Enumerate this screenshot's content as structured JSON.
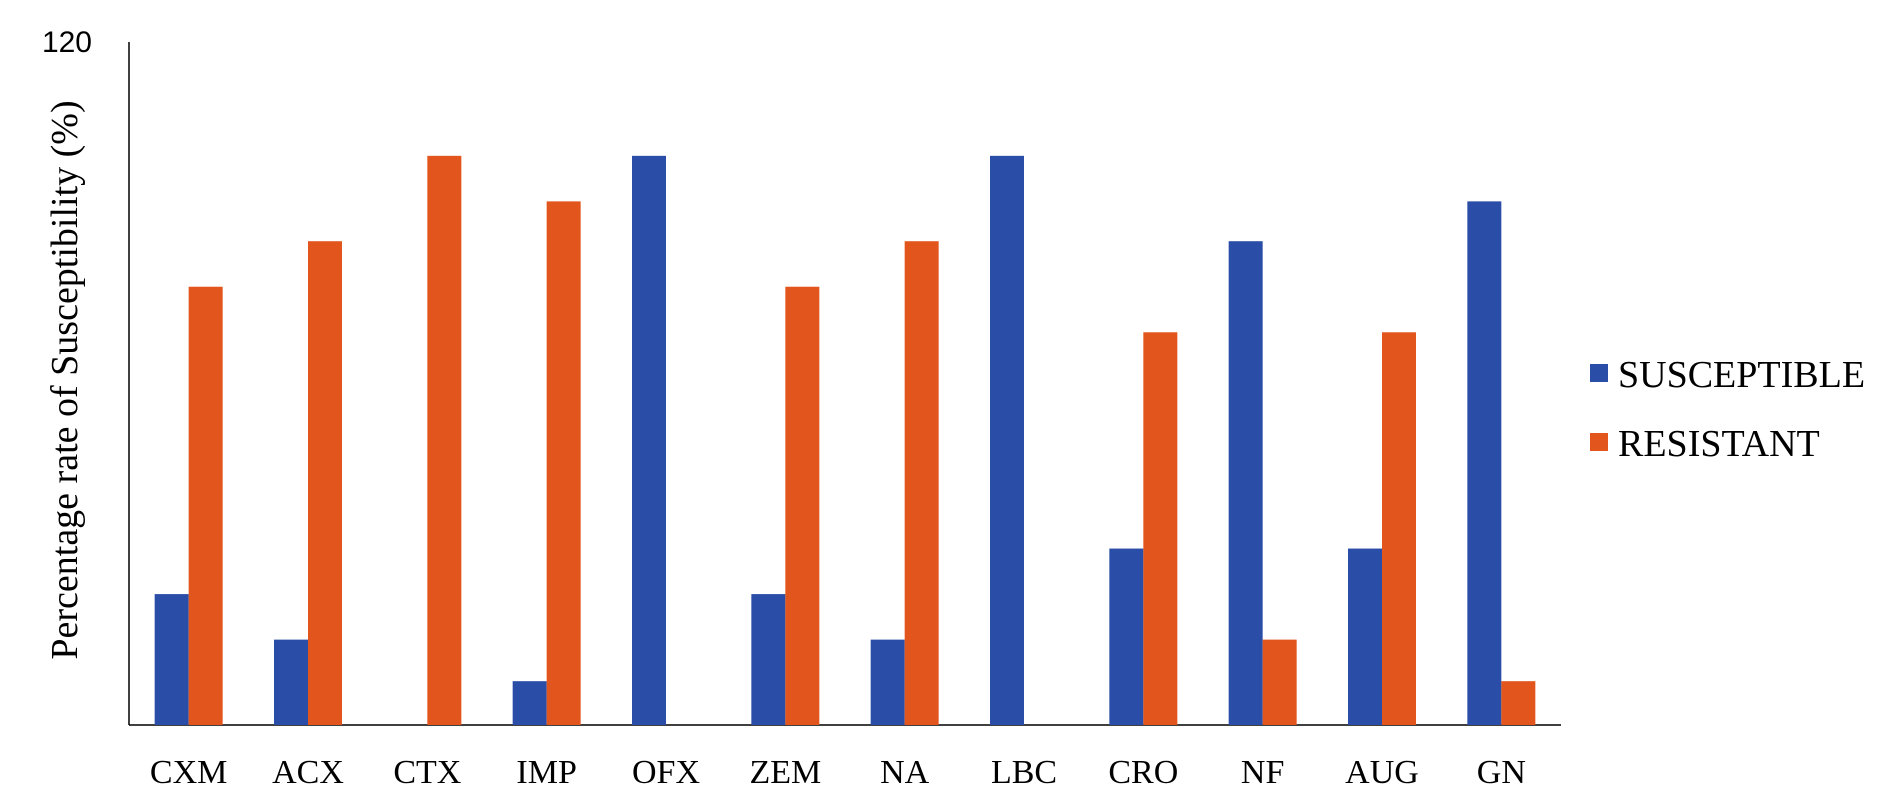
{
  "chart_data": {
    "type": "bar",
    "title": "",
    "xlabel": "",
    "ylabel": "Percentage rate of Susceptibility (%)",
    "ylim": [
      0,
      120
    ],
    "yticks_labeled": [
      "120"
    ],
    "grid": false,
    "legend_position": "right",
    "categories": [
      "CXM",
      "ACX",
      "CTX",
      "IMP",
      "OFX",
      "ZEM",
      "NA",
      "LBC",
      "CRO",
      "NF",
      "AUG",
      "GN"
    ],
    "series": [
      {
        "name": "SUSCEPTIBLE",
        "color": "#2a4ea8",
        "values": [
          23,
          15,
          0,
          7.7,
          100,
          23,
          15,
          100,
          31,
          85,
          31,
          92
        ]
      },
      {
        "name": "RESISTANT",
        "color": "#e2561d",
        "values": [
          77,
          85,
          100,
          92,
          0,
          77,
          85,
          0,
          69,
          15,
          69,
          7.7
        ]
      }
    ]
  }
}
